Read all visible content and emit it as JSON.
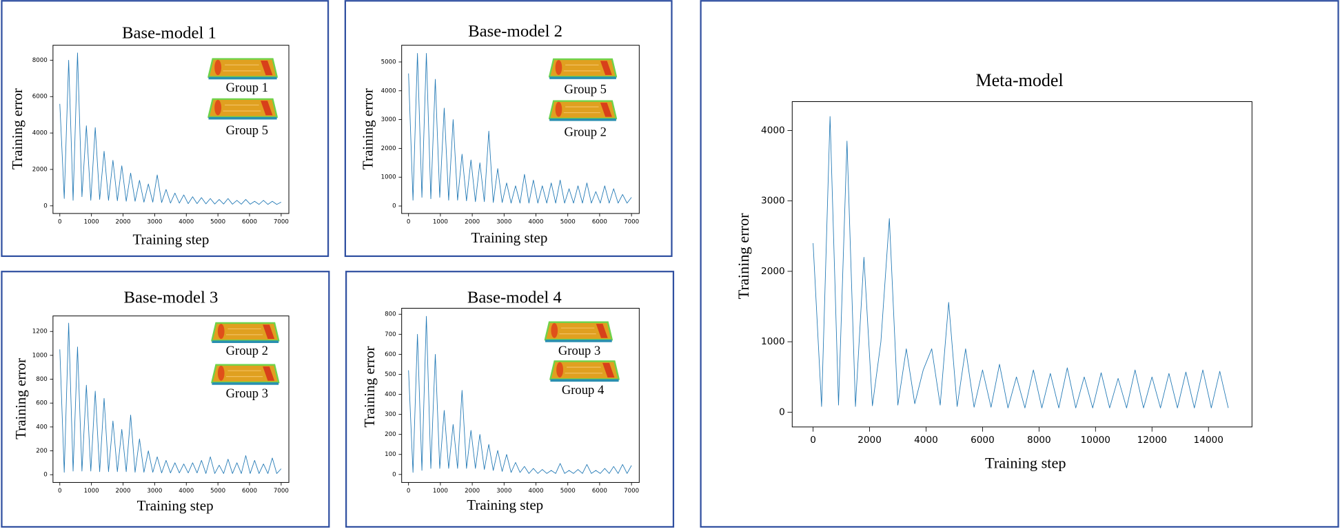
{
  "chart_data": [
    {
      "type": "line",
      "title": "Base-model 1",
      "x_label": "Training step",
      "y_label": "Training error",
      "annotations": [
        "Group 1",
        "Group 5"
      ],
      "color": "#1f77b4",
      "x": [
        0,
        140,
        280,
        420,
        560,
        700,
        840,
        980,
        1120,
        1260,
        1400,
        1540,
        1680,
        1820,
        1960,
        2100,
        2240,
        2380,
        2520,
        2660,
        2800,
        2940,
        3080,
        3220,
        3360,
        3500,
        3640,
        3780,
        3920,
        4060,
        4200,
        4340,
        4480,
        4620,
        4760,
        4900,
        5040,
        5180,
        5320,
        5460,
        5600,
        5740,
        5880,
        6020,
        6160,
        6300,
        6440,
        6580,
        6720,
        6860,
        7000
      ],
      "values": [
        5600,
        400,
        8000,
        300,
        8400,
        500,
        4400,
        300,
        4300,
        350,
        3000,
        300,
        2500,
        280,
        2200,
        250,
        1800,
        250,
        1400,
        200,
        1200,
        200,
        1700,
        180,
        900,
        150,
        700,
        150,
        600,
        120,
        500,
        120,
        450,
        110,
        400,
        100,
        350,
        100,
        400,
        90,
        300,
        90,
        350,
        90,
        250,
        80,
        300,
        80,
        250,
        80,
        200
      ],
      "xlim": [
        -216,
        7243
      ],
      "ylim": [
        -420,
        8820
      ],
      "xticks": [
        0,
        1000,
        2000,
        3000,
        4000,
        5000,
        6000,
        7000
      ],
      "yticks": [
        0,
        2000,
        4000,
        6000,
        8000
      ]
    },
    {
      "type": "line",
      "title": "Base-model 2",
      "x_label": "Training step",
      "y_label": "Training error",
      "annotations": [
        "Group 5",
        "Group 2"
      ],
      "color": "#1f77b4",
      "x": [
        0,
        140,
        280,
        420,
        560,
        700,
        840,
        980,
        1120,
        1260,
        1400,
        1540,
        1680,
        1820,
        1960,
        2100,
        2240,
        2380,
        2520,
        2660,
        2800,
        2940,
        3080,
        3220,
        3360,
        3500,
        3640,
        3780,
        3920,
        4060,
        4200,
        4340,
        4480,
        4620,
        4760,
        4900,
        5040,
        5180,
        5320,
        5460,
        5600,
        5740,
        5880,
        6020,
        6160,
        6300,
        6440,
        6580,
        6720,
        6860,
        7000
      ],
      "values": [
        4600,
        200,
        5300,
        300,
        5300,
        250,
        4400,
        300,
        3400,
        200,
        3000,
        200,
        1800,
        180,
        1600,
        150,
        1500,
        150,
        2600,
        120,
        1300,
        120,
        800,
        100,
        700,
        100,
        1100,
        100,
        900,
        100,
        700,
        100,
        800,
        100,
        900,
        100,
        600,
        100,
        700,
        100,
        800,
        100,
        500,
        100,
        700,
        100,
        600,
        100,
        400,
        100,
        300
      ],
      "xlim": [
        -216,
        7243
      ],
      "ylim": [
        -260,
        5580
      ],
      "xticks": [
        0,
        1000,
        2000,
        3000,
        4000,
        5000,
        6000,
        7000
      ],
      "yticks": [
        0,
        1000,
        2000,
        3000,
        4000,
        5000
      ]
    },
    {
      "type": "line",
      "title": "Base-model 3",
      "x_label": "Training step",
      "y_label": "Training error",
      "annotations": [
        "Group 2",
        "Group 3"
      ],
      "color": "#1f77b4",
      "x": [
        0,
        140,
        280,
        420,
        560,
        700,
        840,
        980,
        1120,
        1260,
        1400,
        1540,
        1680,
        1820,
        1960,
        2100,
        2240,
        2380,
        2520,
        2660,
        2800,
        2940,
        3080,
        3220,
        3360,
        3500,
        3640,
        3780,
        3920,
        4060,
        4200,
        4340,
        4480,
        4620,
        4760,
        4900,
        5040,
        5180,
        5320,
        5460,
        5600,
        5740,
        5880,
        6020,
        6160,
        6300,
        6440,
        6580,
        6720,
        6860,
        7000
      ],
      "values": [
        1050,
        20,
        1270,
        30,
        1070,
        30,
        750,
        30,
        700,
        25,
        640,
        25,
        450,
        25,
        380,
        25,
        500,
        20,
        300,
        20,
        200,
        20,
        150,
        15,
        120,
        15,
        100,
        15,
        90,
        15,
        100,
        15,
        120,
        10,
        150,
        10,
        80,
        10,
        130,
        10,
        100,
        10,
        160,
        10,
        120,
        10,
        90,
        10,
        140,
        10,
        50
      ],
      "xlim": [
        -216,
        7243
      ],
      "ylim": [
        -65,
        1330
      ],
      "xticks": [
        0,
        1000,
        2000,
        3000,
        4000,
        5000,
        6000,
        7000
      ],
      "yticks": [
        0,
        200,
        400,
        600,
        800,
        1000,
        1200
      ]
    },
    {
      "type": "line",
      "title": "Base-model 4",
      "x_label": "Training step",
      "y_label": "Training error",
      "annotations": [
        "Group 3",
        "Group 4"
      ],
      "color": "#1f77b4",
      "x": [
        0,
        140,
        280,
        420,
        560,
        700,
        840,
        980,
        1120,
        1260,
        1400,
        1540,
        1680,
        1820,
        1960,
        2100,
        2240,
        2380,
        2520,
        2660,
        2800,
        2940,
        3080,
        3220,
        3360,
        3500,
        3640,
        3780,
        3920,
        4060,
        4200,
        4340,
        4480,
        4620,
        4760,
        4900,
        5040,
        5180,
        5320,
        5460,
        5600,
        5740,
        5880,
        6020,
        6160,
        6300,
        6440,
        6580,
        6720,
        6860,
        7000
      ],
      "values": [
        520,
        10,
        700,
        20,
        790,
        30,
        600,
        30,
        320,
        30,
        250,
        30,
        420,
        30,
        220,
        30,
        200,
        25,
        150,
        20,
        120,
        15,
        100,
        10,
        60,
        10,
        40,
        5,
        30,
        5,
        25,
        5,
        20,
        5,
        55,
        5,
        20,
        5,
        25,
        5,
        50,
        5,
        20,
        5,
        30,
        5,
        40,
        5,
        50,
        5,
        45
      ],
      "xlim": [
        -216,
        7243
      ],
      "ylim": [
        -40,
        830
      ],
      "xticks": [
        0,
        1000,
        2000,
        3000,
        4000,
        5000,
        6000,
        7000
      ],
      "yticks": [
        0,
        100,
        200,
        300,
        400,
        500,
        600,
        700,
        800
      ]
    },
    {
      "type": "line",
      "title": "Meta-model",
      "x_label": "Training step",
      "y_label": "Training error",
      "color": "#1f77b4",
      "x": [
        0,
        300,
        600,
        900,
        1200,
        1500,
        1800,
        2100,
        2400,
        2700,
        3000,
        3300,
        3600,
        3900,
        4200,
        4500,
        4800,
        5100,
        5400,
        5700,
        6000,
        6300,
        6600,
        6900,
        7200,
        7500,
        7800,
        8100,
        8400,
        8700,
        9000,
        9300,
        9600,
        9900,
        10200,
        10500,
        10800,
        11100,
        11400,
        11700,
        12000,
        12300,
        12600,
        12900,
        13200,
        13500,
        13800,
        14100,
        14400,
        14700
      ],
      "values": [
        2400,
        80,
        4200,
        100,
        3850,
        80,
        2200,
        90,
        1000,
        2750,
        100,
        900,
        120,
        600,
        900,
        100,
        1560,
        80,
        900,
        70,
        600,
        70,
        680,
        60,
        500,
        60,
        600,
        60,
        550,
        60,
        630,
        60,
        500,
        60,
        560,
        60,
        480,
        60,
        600,
        60,
        500,
        60,
        550,
        60,
        570,
        60,
        600,
        60,
        580,
        60
      ],
      "xlim": [
        -740,
        15540
      ],
      "ylim": [
        -210,
        4410
      ],
      "xticks": [
        0,
        2000,
        4000,
        6000,
        8000,
        10000,
        12000,
        14000
      ],
      "yticks": [
        0,
        1000,
        2000,
        3000,
        4000
      ]
    }
  ]
}
